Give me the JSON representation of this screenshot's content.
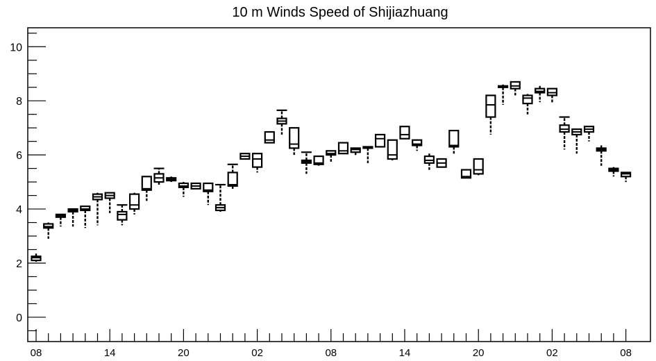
{
  "chart_data": {
    "type": "box",
    "title": "10 m Winds Speed of Shijiazhuang",
    "xlabel": "",
    "ylabel": "",
    "ylim": [
      -0.9,
      10.7
    ],
    "yticks": [
      0,
      2,
      4,
      6,
      8,
      10
    ],
    "xlim": [
      0,
      49
    ],
    "xtick_labels": [
      "08",
      "14",
      "20",
      "02",
      "08",
      "14",
      "20",
      "02",
      "08"
    ],
    "grid": false,
    "legend": "none",
    "boxes": [
      {
        "x": 1,
        "low": 2.05,
        "q1": 2.1,
        "median": 2.2,
        "q3": 2.25,
        "high": 2.4
      },
      {
        "x": 2,
        "low": 2.9,
        "q1": 3.3,
        "median": 3.35,
        "q3": 3.45,
        "high": 3.5
      },
      {
        "x": 3,
        "low": 3.35,
        "q1": 3.7,
        "median": 3.75,
        "q3": 3.8,
        "high": 3.8
      },
      {
        "x": 4,
        "low": 3.35,
        "q1": 3.9,
        "median": 3.95,
        "q3": 4.0,
        "high": 4.0
      },
      {
        "x": 5,
        "low": 3.3,
        "q1": 3.95,
        "median": 4.0,
        "q3": 4.1,
        "high": 4.1
      },
      {
        "x": 6,
        "low": 3.4,
        "q1": 4.35,
        "median": 4.45,
        "q3": 4.55,
        "high": 4.6
      },
      {
        "x": 7,
        "low": 3.85,
        "q1": 4.4,
        "median": 4.5,
        "q3": 4.6,
        "high": 4.6
      },
      {
        "x": 8,
        "low": 3.4,
        "q1": 3.6,
        "median": 3.8,
        "q3": 3.9,
        "high": 4.15
      },
      {
        "x": 9,
        "low": 3.8,
        "q1": 4.0,
        "median": 4.15,
        "q3": 4.55,
        "high": 4.6
      },
      {
        "x": 10,
        "low": 4.3,
        "q1": 4.7,
        "median": 4.75,
        "q3": 5.2,
        "high": 5.2
      },
      {
        "x": 11,
        "low": 4.9,
        "q1": 5.0,
        "median": 5.15,
        "q3": 5.3,
        "high": 5.5
      },
      {
        "x": 12,
        "low": 5.0,
        "q1": 5.05,
        "median": 5.1,
        "q3": 5.15,
        "high": 5.2
      },
      {
        "x": 13,
        "low": 4.45,
        "q1": 4.8,
        "median": 4.85,
        "q3": 4.95,
        "high": 5.0
      },
      {
        "x": 14,
        "low": 4.75,
        "q1": 4.75,
        "median": 4.85,
        "q3": 4.95,
        "high": 4.95
      },
      {
        "x": 15,
        "low": 4.15,
        "q1": 4.65,
        "median": 4.7,
        "q3": 4.95,
        "high": 4.95
      },
      {
        "x": 16,
        "low": 3.9,
        "q1": 3.95,
        "median": 4.05,
        "q3": 4.15,
        "high": 4.9
      },
      {
        "x": 17,
        "low": 4.7,
        "q1": 4.85,
        "median": 4.9,
        "q3": 5.35,
        "high": 5.65
      },
      {
        "x": 18,
        "low": 5.85,
        "q1": 5.85,
        "median": 5.95,
        "q3": 6.05,
        "high": 6.05
      },
      {
        "x": 19,
        "low": 5.35,
        "q1": 5.55,
        "median": 5.85,
        "q3": 6.05,
        "high": 6.05
      },
      {
        "x": 20,
        "low": 6.45,
        "q1": 6.45,
        "median": 6.55,
        "q3": 6.85,
        "high": 6.85
      },
      {
        "x": 21,
        "low": 6.75,
        "q1": 7.15,
        "median": 7.25,
        "q3": 7.35,
        "high": 7.65
      },
      {
        "x": 22,
        "low": 6.0,
        "q1": 6.25,
        "median": 6.4,
        "q3": 7.0,
        "high": 7.0
      },
      {
        "x": 23,
        "low": 5.3,
        "q1": 5.7,
        "median": 5.75,
        "q3": 5.8,
        "high": 6.1
      },
      {
        "x": 24,
        "low": 5.6,
        "q1": 5.65,
        "median": 5.7,
        "q3": 5.95,
        "high": 5.95
      },
      {
        "x": 25,
        "low": 5.75,
        "q1": 6.0,
        "median": 6.05,
        "q3": 6.15,
        "high": 6.15
      },
      {
        "x": 26,
        "low": 6.05,
        "q1": 6.05,
        "median": 6.15,
        "q3": 6.45,
        "high": 6.45
      },
      {
        "x": 27,
        "low": 5.95,
        "q1": 6.1,
        "median": 6.2,
        "q3": 6.25,
        "high": 6.25
      },
      {
        "x": 28,
        "low": 5.7,
        "q1": 6.25,
        "median": 6.25,
        "q3": 6.3,
        "high": 6.3
      },
      {
        "x": 29,
        "low": 6.3,
        "q1": 6.3,
        "median": 6.6,
        "q3": 6.75,
        "high": 6.75
      },
      {
        "x": 30,
        "low": 5.8,
        "q1": 5.85,
        "median": 6.0,
        "q3": 6.55,
        "high": 6.55
      },
      {
        "x": 31,
        "low": 6.6,
        "q1": 6.6,
        "median": 6.75,
        "q3": 7.05,
        "high": 7.05
      },
      {
        "x": 32,
        "low": 6.15,
        "q1": 6.35,
        "median": 6.4,
        "q3": 6.55,
        "high": 6.55
      },
      {
        "x": 33,
        "low": 5.45,
        "q1": 5.7,
        "median": 5.8,
        "q3": 5.95,
        "high": 6.05
      },
      {
        "x": 34,
        "low": 5.55,
        "q1": 5.55,
        "median": 5.7,
        "q3": 5.85,
        "high": 5.85
      },
      {
        "x": 35,
        "low": 6.05,
        "q1": 6.3,
        "median": 6.35,
        "q3": 6.9,
        "high": 6.9
      },
      {
        "x": 36,
        "low": 5.15,
        "q1": 5.15,
        "median": 5.2,
        "q3": 5.45,
        "high": 5.45
      },
      {
        "x": 37,
        "low": 5.25,
        "q1": 5.3,
        "median": 5.45,
        "q3": 5.85,
        "high": 5.85
      },
      {
        "x": 38,
        "low": 6.75,
        "q1": 7.4,
        "median": 7.85,
        "q3": 8.2,
        "high": 8.2
      },
      {
        "x": 39,
        "low": 7.85,
        "q1": 8.5,
        "median": 8.5,
        "q3": 8.55,
        "high": 8.6
      },
      {
        "x": 40,
        "low": 8.2,
        "q1": 8.45,
        "median": 8.55,
        "q3": 8.7,
        "high": 8.7
      },
      {
        "x": 41,
        "low": 7.5,
        "q1": 7.9,
        "median": 8.1,
        "q3": 8.2,
        "high": 8.25
      },
      {
        "x": 42,
        "low": 7.95,
        "q1": 8.3,
        "median": 8.35,
        "q3": 8.45,
        "high": 8.55
      },
      {
        "x": 43,
        "low": 7.9,
        "q1": 8.2,
        "median": 8.3,
        "q3": 8.45,
        "high": 8.45
      },
      {
        "x": 44,
        "low": 6.2,
        "q1": 6.85,
        "median": 6.95,
        "q3": 7.1,
        "high": 7.4
      },
      {
        "x": 45,
        "low": 6.05,
        "q1": 6.75,
        "median": 6.85,
        "q3": 6.95,
        "high": 6.95
      },
      {
        "x": 46,
        "low": 6.5,
        "q1": 6.85,
        "median": 6.95,
        "q3": 7.05,
        "high": 7.05
      },
      {
        "x": 47,
        "low": 5.6,
        "q1": 6.15,
        "median": 6.2,
        "q3": 6.25,
        "high": 6.4
      },
      {
        "x": 48,
        "low": 5.2,
        "q1": 5.4,
        "median": 5.45,
        "q3": 5.5,
        "high": 5.55
      },
      {
        "x": 49,
        "low": 5.0,
        "q1": 5.2,
        "median": 5.3,
        "q3": 5.35,
        "high": 5.35
      }
    ]
  }
}
